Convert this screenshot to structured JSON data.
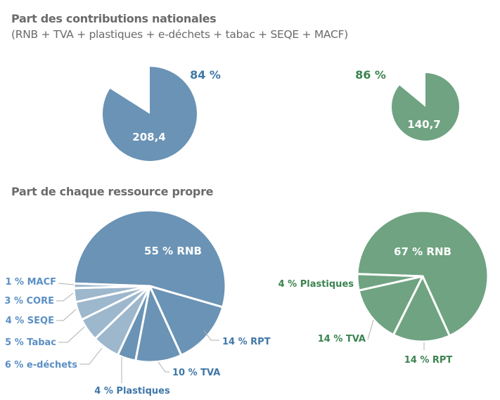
{
  "colors": {
    "blue": "#6a93b5",
    "blue_light": "#9db7cd",
    "blue_text": "#3f77a8",
    "blue_label": "#5b8fc4",
    "green": "#6fa381",
    "green_text": "#3b8350",
    "leader": "#b0b0b0",
    "title": "#6b6b6b"
  },
  "section1": {
    "title": "Part des contributions nationales",
    "subtitle": "(RNB + TVA + plastiques + e-déchets + tabac + SEQE + MACF)"
  },
  "section2": {
    "title": "Part de chaque ressource propre"
  },
  "chart_data": [
    {
      "type": "pie",
      "id": "national-left",
      "title": "Part des contributions nationales",
      "share_percent": 84,
      "share_label": "84 %",
      "value_label": "208,4",
      "value": 208.4,
      "color": "blue"
    },
    {
      "type": "pie",
      "id": "national-right",
      "title": "Part des contributions nationales",
      "share_percent": 86,
      "share_label": "86 %",
      "value_label": "140,7",
      "value": 140.7,
      "color": "green"
    },
    {
      "type": "pie",
      "id": "resources-left",
      "title": "Part de chaque ressource propre",
      "slices": [
        {
          "name": "RNB",
          "value": 55,
          "label": "55 % RNB",
          "tone": "dark",
          "inside": true
        },
        {
          "name": "RPT",
          "value": 14,
          "label": "14 % RPT",
          "tone": "dark"
        },
        {
          "name": "TVA",
          "value": 10,
          "label": "10 % TVA",
          "tone": "dark"
        },
        {
          "name": "Plastiques",
          "value": 4,
          "label": "4 % Plastiques",
          "tone": "dark"
        },
        {
          "name": "e-déchets",
          "value": 6,
          "label": "6 % e-déchets",
          "tone": "light"
        },
        {
          "name": "Tabac",
          "value": 5,
          "label": "5 % Tabac",
          "tone": "light"
        },
        {
          "name": "SEQE",
          "value": 4,
          "label": "4 % SEQE",
          "tone": "light"
        },
        {
          "name": "CORE",
          "value": 3,
          "label": "3 % CORE",
          "tone": "light"
        },
        {
          "name": "MACF",
          "value": 1,
          "label": "1 % MACF",
          "tone": "light"
        }
      ]
    },
    {
      "type": "pie",
      "id": "resources-right",
      "title": "Part de chaque ressource propre",
      "slices": [
        {
          "name": "RNB",
          "value": 67,
          "label": "67 % RNB",
          "inside": true
        },
        {
          "name": "RPT",
          "value": 14,
          "label": "14 % RPT"
        },
        {
          "name": "TVA",
          "value": 14,
          "label": "14 % TVA"
        },
        {
          "name": "Plastiques",
          "value": 4,
          "label": "4 % Plastiques"
        }
      ]
    }
  ]
}
